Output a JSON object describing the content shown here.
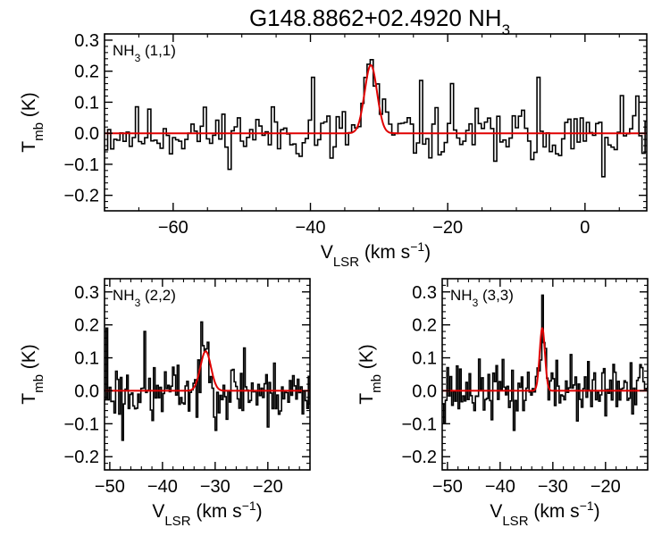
{
  "title": {
    "main": "G148.8862+02.4920 NH",
    "sub": "3"
  },
  "colors": {
    "axis": "#000000",
    "spectrum": "#000000",
    "fit": "#e00000"
  },
  "chart_data": [
    {
      "id": "top",
      "type": "line",
      "step": true,
      "label": {
        "main": "NH",
        "sub": "3",
        "rest": " (1,1)"
      },
      "xlabel": {
        "main": "V",
        "sub": "LSR",
        "unit": " (km s",
        "sup": "−1",
        "close": ")"
      },
      "ylabel": {
        "main": "T",
        "sub": "mb",
        "unit": " (K)"
      },
      "xlim": [
        -70,
        9
      ],
      "ylim": [
        -0.25,
        0.32
      ],
      "xticks": [
        -60,
        -40,
        -20,
        0
      ],
      "yticks": [
        -0.2,
        -0.1,
        0.0,
        0.1,
        0.2,
        0.3
      ],
      "xtick_labels": [
        "−60",
        "−40",
        "−20",
        "0"
      ],
      "ytick_labels": [
        "−0.2",
        "−0.1",
        "0.0",
        "0.1",
        "0.2",
        "0.3"
      ],
      "fit": {
        "amp": 0.22,
        "center": -31.2,
        "sigma": 0.9
      },
      "noise_peaks": [
        {
          "x": -39.8,
          "y": 0.18
        },
        {
          "x": -37.0,
          "y": -0.08
        },
        {
          "x": -29.5,
          "y": 0.11
        },
        {
          "x": -24.0,
          "y": 0.17
        },
        {
          "x": -19.5,
          "y": 0.16
        },
        {
          "x": -13.0,
          "y": -0.09
        },
        {
          "x": -7.0,
          "y": 0.18
        },
        {
          "x": -2.0,
          "y": -0.05
        },
        {
          "x": 2.5,
          "y": -0.14
        },
        {
          "x": 7.5,
          "y": 0.12
        }
      ]
    },
    {
      "id": "bottom-left",
      "type": "line",
      "step": true,
      "label": {
        "main": "NH",
        "sub": "3",
        "rest": " (2,2)"
      },
      "xlabel": {
        "main": "V",
        "sub": "LSR",
        "unit": " (km s",
        "sup": "−1",
        "close": ")"
      },
      "ylabel": {
        "main": "T",
        "sub": "mb",
        "unit": " (K)"
      },
      "xlim": [
        -51,
        -12
      ],
      "ylim": [
        -0.24,
        0.34
      ],
      "xticks": [
        -50,
        -40,
        -30,
        -20
      ],
      "yticks": [
        -0.2,
        -0.1,
        0.0,
        0.1,
        0.2,
        0.3
      ],
      "xtick_labels": [
        "−50",
        "−40",
        "−30",
        "−20"
      ],
      "ytick_labels": [
        "−0.2",
        "−0.1",
        "0.0",
        "0.1",
        "0.2",
        "0.3"
      ],
      "fit": {
        "amp": 0.12,
        "center": -31.8,
        "sigma": 1.0
      },
      "noise_peaks": [
        {
          "x": -50.5,
          "y": 0.19
        },
        {
          "x": -47.5,
          "y": -0.15
        },
        {
          "x": -43.5,
          "y": 0.18
        },
        {
          "x": -42.0,
          "y": -0.09
        },
        {
          "x": -33.5,
          "y": -0.08
        },
        {
          "x": -30.0,
          "y": -0.12
        },
        {
          "x": -24.5,
          "y": 0.13
        },
        {
          "x": -20.0,
          "y": -0.11
        },
        {
          "x": -13.5,
          "y": -0.07
        }
      ]
    },
    {
      "id": "bottom-right",
      "type": "line",
      "step": true,
      "label": {
        "main": "NH",
        "sub": "3",
        "rest": " (3,3)"
      },
      "xlabel": {
        "main": "V",
        "sub": "LSR",
        "unit": " (km s",
        "sup": "−1",
        "close": ")"
      },
      "ylabel": {
        "main": "T",
        "sub": "mb",
        "unit": " (K)"
      },
      "xlim": [
        -51,
        -12
      ],
      "ylim": [
        -0.24,
        0.34
      ],
      "xticks": [
        -50,
        -40,
        -30,
        -20
      ],
      "yticks": [
        -0.2,
        -0.1,
        0.0,
        0.1,
        0.2,
        0.3
      ],
      "xtick_labels": [
        "−50",
        "−40",
        "−30",
        "−20"
      ],
      "ytick_labels": [
        "−0.2",
        "−0.1",
        "0.0",
        "0.1",
        "0.2",
        "0.3"
      ],
      "fit": {
        "amp": 0.19,
        "center": -32.0,
        "sigma": 0.5
      },
      "noise_peaks": [
        {
          "x": -32.0,
          "y": 0.29
        },
        {
          "x": -50.0,
          "y": 0.07
        },
        {
          "x": -45.0,
          "y": -0.06
        },
        {
          "x": -37.5,
          "y": -0.12
        },
        {
          "x": -26.5,
          "y": 0.11
        },
        {
          "x": -18.5,
          "y": 0.08
        },
        {
          "x": -15.0,
          "y": -0.07
        },
        {
          "x": -13.0,
          "y": 0.07
        }
      ]
    }
  ]
}
